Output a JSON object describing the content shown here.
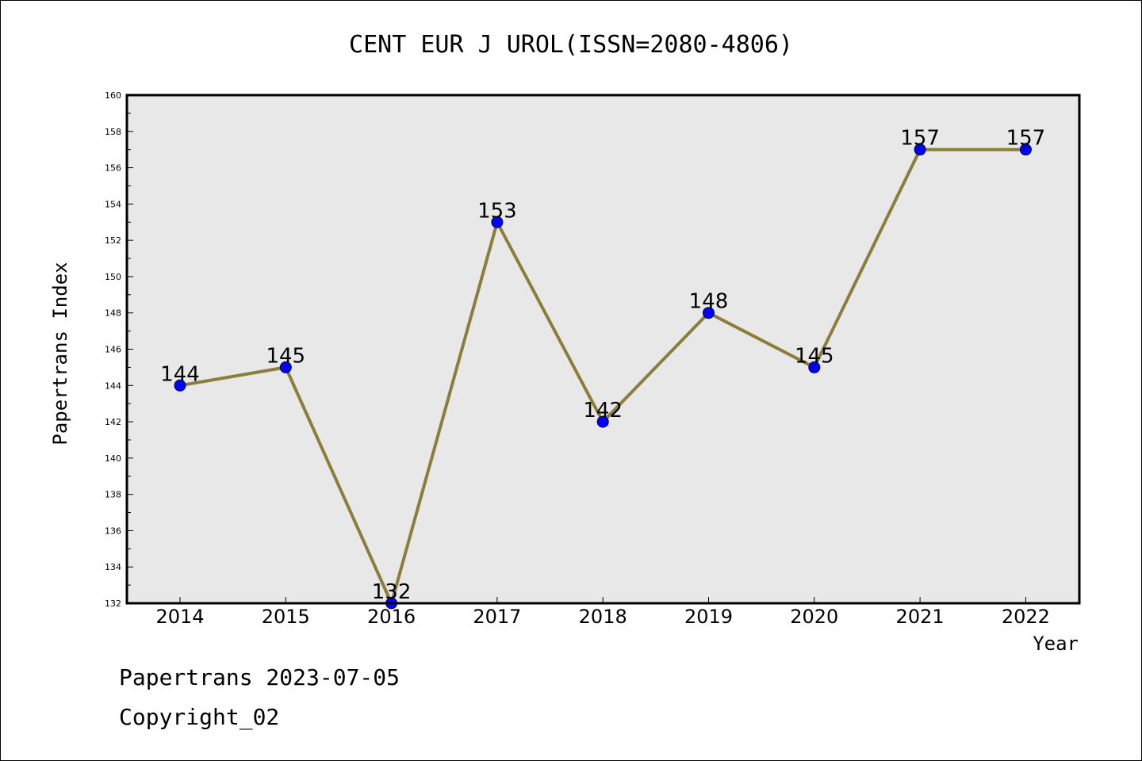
{
  "chart_data": {
    "type": "line",
    "title": "CENT EUR J UROL(ISSN=2080-4806)",
    "xlabel": "Year",
    "ylabel": "Papertrans Index",
    "categories": [
      "2014",
      "2015",
      "2016",
      "2017",
      "2018",
      "2019",
      "2020",
      "2021",
      "2022"
    ],
    "series": [
      {
        "values": [
          144,
          145,
          132,
          153,
          142,
          148,
          145,
          157,
          157
        ]
      }
    ],
    "data_labels": [
      "144",
      "145",
      "132",
      "153",
      "142",
      "148",
      "145",
      "157",
      "157"
    ],
    "ylim": [
      132,
      160
    ],
    "yticks": [
      "132",
      "134",
      "136",
      "138",
      "140",
      "142",
      "144",
      "146",
      "148",
      "150",
      "152",
      "154",
      "156",
      "158",
      "160"
    ],
    "grid": false,
    "colors": {
      "line": "#8B7D3A",
      "marker": "#0000FF",
      "plot_background": "#E8E8E8"
    }
  },
  "footer": {
    "line1": "Papertrans 2023-07-05",
    "line2": "Copyright_02"
  }
}
